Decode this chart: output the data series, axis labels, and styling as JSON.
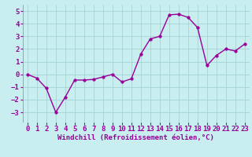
{
  "x": [
    0,
    1,
    2,
    3,
    4,
    5,
    6,
    7,
    8,
    9,
    10,
    11,
    12,
    13,
    14,
    15,
    16,
    17,
    18,
    19,
    20,
    21,
    22,
    23
  ],
  "y": [
    0.0,
    -0.3,
    -1.1,
    -3.0,
    -1.8,
    -0.45,
    -0.45,
    -0.4,
    -0.2,
    0.0,
    -0.6,
    -0.35,
    1.6,
    2.8,
    3.0,
    4.7,
    4.75,
    4.5,
    3.7,
    0.7,
    1.5,
    2.0,
    1.85,
    2.4
  ],
  "line_color": "#990099",
  "marker_color": "#990099",
  "bg_color": "#c8eef0",
  "grid_color": "#9ecfcf",
  "xlabel": "Windchill (Refroidissement éolien,°C)",
  "xlim": [
    -0.5,
    23.5
  ],
  "ylim": [
    -3.8,
    5.5
  ],
  "yticks": [
    -3,
    -2,
    -1,
    0,
    1,
    2,
    3,
    4,
    5
  ],
  "xticks": [
    0,
    1,
    2,
    3,
    4,
    5,
    6,
    7,
    8,
    9,
    10,
    11,
    12,
    13,
    14,
    15,
    16,
    17,
    18,
    19,
    20,
    21,
    22,
    23
  ],
  "xlabel_fontsize": 6.5,
  "tick_fontsize": 6.5,
  "line_width": 1.0,
  "marker_size": 2.5
}
